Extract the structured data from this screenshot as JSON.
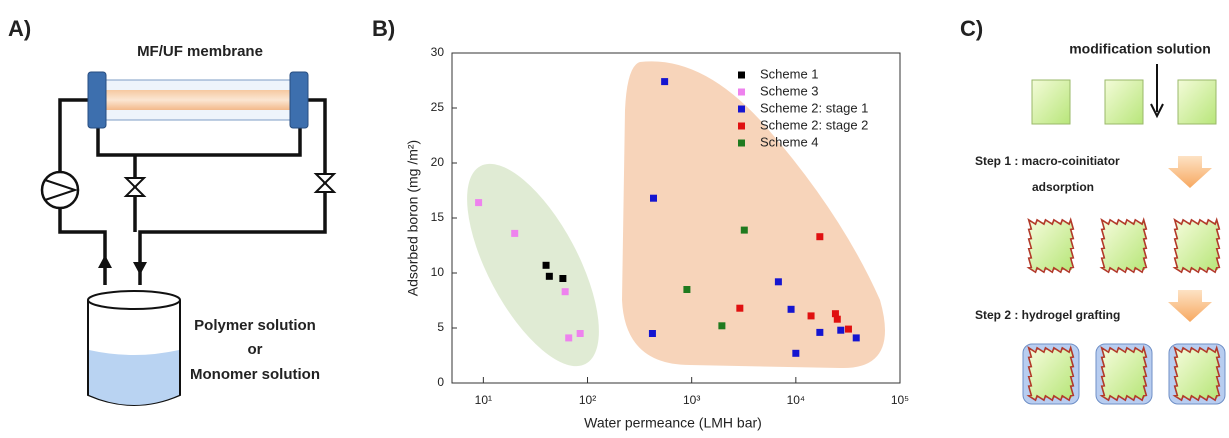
{
  "panel_a": {
    "label": "A)",
    "membrane": "MF/UF membrane",
    "solution": [
      "Polymer solution",
      "or",
      "Monomer solution"
    ]
  },
  "chart_data": {
    "type": "scatter",
    "label": "B)",
    "x_label": "Water permeance (LMH bar)",
    "y_label": "Adsorbed boron (mg /m²)",
    "x_log": true,
    "xlim": [
      5,
      100000
    ],
    "xticks": [
      {
        "value": 10,
        "label": "10¹"
      },
      {
        "value": 100,
        "label": "10²"
      },
      {
        "value": 1000,
        "label": "10³"
      },
      {
        "value": 10000,
        "label": "10⁴"
      },
      {
        "value": 100000,
        "label": "10⁵"
      }
    ],
    "ylim": [
      0,
      30
    ],
    "yticks": [
      0,
      5,
      10,
      15,
      20,
      25,
      30
    ],
    "legend": "upper right",
    "series": [
      {
        "name": "Scheme 1",
        "color": "#000000",
        "x": [
          40,
          43,
          58
        ],
        "values": [
          10.7,
          9.7,
          9.5
        ]
      },
      {
        "name": "Scheme 3",
        "color": "#ee82ee",
        "x": [
          9,
          20,
          61,
          66,
          85
        ],
        "values": [
          16.4,
          13.6,
          8.3,
          4.1,
          4.5
        ]
      },
      {
        "name": "Scheme 2: stage 1",
        "color": "#1515d0",
        "x": [
          550,
          430,
          6800,
          9000,
          17000,
          10000,
          27000,
          38000,
          420
        ],
        "values": [
          27.4,
          16.8,
          9.2,
          6.7,
          4.6,
          2.7,
          4.8,
          4.1,
          4.5
        ]
      },
      {
        "name": "Scheme 2: stage 2",
        "color": "#e01010",
        "x": [
          2900,
          14000,
          17000,
          24000,
          25000,
          32000
        ],
        "values": [
          6.8,
          6.1,
          13.3,
          6.3,
          5.8,
          4.9
        ]
      },
      {
        "name": "Scheme 4",
        "color": "#1f7a1f",
        "x": [
          900,
          3200,
          1950
        ],
        "values": [
          8.5,
          13.9,
          5.2
        ]
      }
    ]
  },
  "panel_c": {
    "label": "C)",
    "title": "modification solution",
    "step1": [
      "Step 1 : macro-coinitiator",
      "adsorption"
    ],
    "step2": "Step 2 : hydrogel grafting"
  }
}
